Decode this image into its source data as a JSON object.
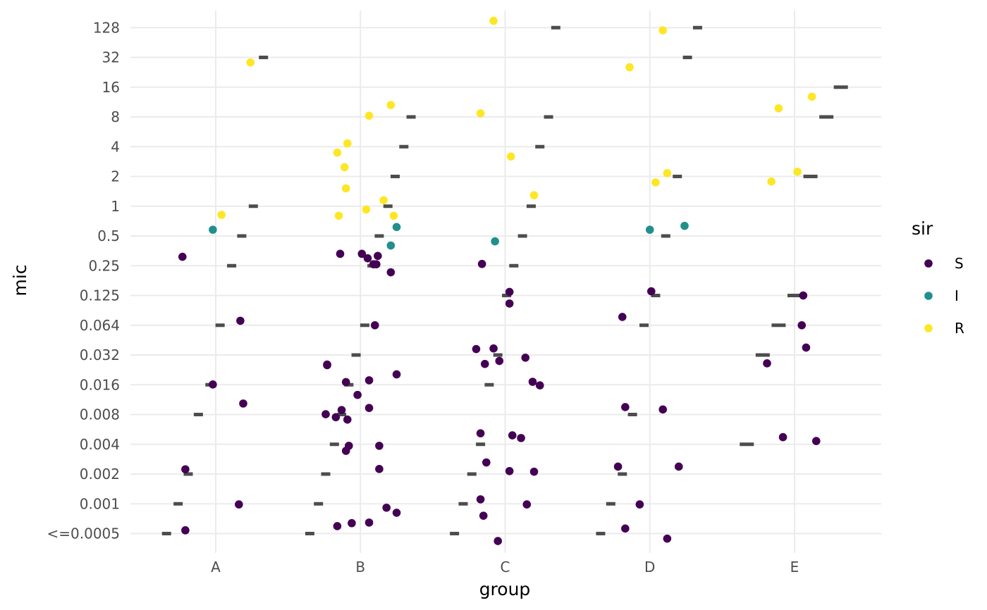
{
  "chart_data": {
    "type": "scatter",
    "xlabel": "group",
    "ylabel": "mic",
    "categories": [
      "A",
      "B",
      "C",
      "D",
      "E"
    ],
    "y_levels": [
      "<=0.0005",
      "0.001",
      "0.002",
      "0.004",
      "0.008",
      "0.016",
      "0.032",
      "0.064",
      "0.125",
      "0.25",
      "0.5",
      "1",
      "2",
      "4",
      "8",
      "16",
      "32",
      "128"
    ],
    "grid": true,
    "legend": {
      "title": "sir",
      "position": "right",
      "entries": [
        {
          "label": "S",
          "color": "#440154"
        },
        {
          "label": "I",
          "color": "#21908C"
        },
        {
          "label": "R",
          "color": "#FDE725"
        }
      ]
    },
    "breakpoint_color": "#4d4d4d",
    "breakpoints": [
      {
        "group": "A",
        "items": [
          {
            "mic": "<=0.0005",
            "offset": -0.34
          },
          {
            "mic": "0.001",
            "offset": -0.26
          },
          {
            "mic": "0.002",
            "offset": -0.19
          },
          {
            "mic": "0.008",
            "offset": -0.12
          },
          {
            "mic": "0.016",
            "offset": -0.04
          },
          {
            "mic": "0.064",
            "offset": 0.03
          },
          {
            "mic": "0.25",
            "offset": 0.11
          },
          {
            "mic": "0.5",
            "offset": 0.18
          },
          {
            "mic": "1",
            "offset": 0.26
          },
          {
            "mic": "32",
            "offset": 0.33
          }
        ]
      },
      {
        "group": "B",
        "items": [
          {
            "mic": "<=0.0005",
            "offset": -0.35
          },
          {
            "mic": "0.001",
            "offset": -0.29
          },
          {
            "mic": "0.002",
            "offset": -0.24
          },
          {
            "mic": "0.004",
            "offset": -0.18
          },
          {
            "mic": "0.008",
            "offset": -0.13
          },
          {
            "mic": "0.016",
            "offset": -0.08
          },
          {
            "mic": "0.032",
            "offset": -0.03
          },
          {
            "mic": "0.064",
            "offset": 0.03
          },
          {
            "mic": "0.25",
            "offset": 0.08
          },
          {
            "mic": "0.5",
            "offset": 0.13
          },
          {
            "mic": "1",
            "offset": 0.19
          },
          {
            "mic": "2",
            "offset": 0.24
          },
          {
            "mic": "4",
            "offset": 0.3
          },
          {
            "mic": "8",
            "offset": 0.35
          }
        ]
      },
      {
        "group": "C",
        "items": [
          {
            "mic": "<=0.0005",
            "offset": -0.35
          },
          {
            "mic": "0.001",
            "offset": -0.29
          },
          {
            "mic": "0.002",
            "offset": -0.23
          },
          {
            "mic": "0.004",
            "offset": -0.17
          },
          {
            "mic": "0.016",
            "offset": -0.11
          },
          {
            "mic": "0.032",
            "offset": -0.05
          },
          {
            "mic": "0.125",
            "offset": 0.01
          },
          {
            "mic": "0.25",
            "offset": 0.06
          },
          {
            "mic": "0.5",
            "offset": 0.12
          },
          {
            "mic": "1",
            "offset": 0.18
          },
          {
            "mic": "4",
            "offset": 0.24
          },
          {
            "mic": "8",
            "offset": 0.3
          },
          {
            "mic": "128",
            "offset": 0.35
          }
        ]
      },
      {
        "group": "D",
        "items": [
          {
            "mic": "<=0.0005",
            "offset": -0.34
          },
          {
            "mic": "0.001",
            "offset": -0.27
          },
          {
            "mic": "0.002",
            "offset": -0.19
          },
          {
            "mic": "0.008",
            "offset": -0.12
          },
          {
            "mic": "0.064",
            "offset": -0.04
          },
          {
            "mic": "0.125",
            "offset": 0.04
          },
          {
            "mic": "0.5",
            "offset": 0.11
          },
          {
            "mic": "2",
            "offset": 0.19
          },
          {
            "mic": "32",
            "offset": 0.26
          },
          {
            "mic": "128",
            "offset": 0.33
          }
        ]
      },
      {
        "group": "E",
        "items": [
          {
            "mic": "0.004",
            "offset": -0.33
          },
          {
            "mic": "0.032",
            "offset": -0.22
          },
          {
            "mic": "0.064",
            "offset": -0.11
          },
          {
            "mic": "0.125",
            "offset": 0.0
          },
          {
            "mic": "2",
            "offset": 0.11
          },
          {
            "mic": "8",
            "offset": 0.22
          },
          {
            "mic": "16",
            "offset": 0.32
          }
        ]
      }
    ],
    "points": [
      {
        "group": "A",
        "mic": "<=0.0005",
        "sir": "S",
        "jx": -0.21,
        "jy": 0.11
      },
      {
        "group": "A",
        "mic": "0.001",
        "sir": "S",
        "jx": 0.16,
        "jy": -0.02
      },
      {
        "group": "A",
        "mic": "0.002",
        "sir": "S",
        "jx": -0.21,
        "jy": 0.16
      },
      {
        "group": "A",
        "mic": "0.008",
        "sir": "S",
        "jx": 0.19,
        "jy": 0.37
      },
      {
        "group": "A",
        "mic": "0.016",
        "sir": "S",
        "jx": -0.02,
        "jy": 0.01
      },
      {
        "group": "A",
        "mic": "0.064",
        "sir": "S",
        "jx": 0.17,
        "jy": 0.15
      },
      {
        "group": "A",
        "mic": "0.25",
        "sir": "S",
        "jx": -0.23,
        "jy": 0.3
      },
      {
        "group": "A",
        "mic": "0.5",
        "sir": "I",
        "jx": -0.02,
        "jy": 0.21
      },
      {
        "group": "A",
        "mic": "1",
        "sir": "R",
        "jx": 0.04,
        "jy": -0.29
      },
      {
        "group": "A",
        "mic": "32",
        "sir": "R",
        "jx": 0.24,
        "jy": -0.17
      },
      {
        "group": "B",
        "mic": "<=0.0005",
        "sir": "S",
        "jx": -0.16,
        "jy": 0.25
      },
      {
        "group": "B",
        "mic": "<=0.0005",
        "sir": "S",
        "jx": -0.06,
        "jy": 0.35
      },
      {
        "group": "B",
        "mic": "<=0.0005",
        "sir": "S",
        "jx": 0.06,
        "jy": 0.37
      },
      {
        "group": "B",
        "mic": "0.001",
        "sir": "S",
        "jx": 0.18,
        "jy": -0.13
      },
      {
        "group": "B",
        "mic": "0.001",
        "sir": "S",
        "jx": 0.25,
        "jy": -0.3
      },
      {
        "group": "B",
        "mic": "0.002",
        "sir": "S",
        "jx": 0.13,
        "jy": 0.17
      },
      {
        "group": "B",
        "mic": "0.004",
        "sir": "S",
        "jx": -0.1,
        "jy": -0.22
      },
      {
        "group": "B",
        "mic": "0.004",
        "sir": "S",
        "jx": -0.08,
        "jy": -0.05
      },
      {
        "group": "B",
        "mic": "0.004",
        "sir": "S",
        "jx": 0.13,
        "jy": -0.05
      },
      {
        "group": "B",
        "mic": "0.008",
        "sir": "S",
        "jx": -0.24,
        "jy": 0.01
      },
      {
        "group": "B",
        "mic": "0.008",
        "sir": "S",
        "jx": -0.17,
        "jy": -0.09
      },
      {
        "group": "B",
        "mic": "0.008",
        "sir": "S",
        "jx": -0.13,
        "jy": 0.15
      },
      {
        "group": "B",
        "mic": "0.008",
        "sir": "S",
        "jx": -0.09,
        "jy": -0.17
      },
      {
        "group": "B",
        "mic": "0.008",
        "sir": "S",
        "jx": 0.06,
        "jy": 0.22
      },
      {
        "group": "B",
        "mic": "0.016",
        "sir": "S",
        "jx": -0.1,
        "jy": 0.09
      },
      {
        "group": "B",
        "mic": "0.016",
        "sir": "S",
        "jx": -0.02,
        "jy": -0.34
      },
      {
        "group": "B",
        "mic": "0.016",
        "sir": "S",
        "jx": 0.06,
        "jy": 0.15
      },
      {
        "group": "B",
        "mic": "0.016",
        "sir": "S",
        "jx": 0.25,
        "jy": 0.35
      },
      {
        "group": "B",
        "mic": "0.032",
        "sir": "S",
        "jx": -0.23,
        "jy": -0.32
      },
      {
        "group": "B",
        "mic": "0.032",
        "sir": "S",
        "jx": -0.23,
        "jy": -0.34
      },
      {
        "group": "B",
        "mic": "0.064",
        "sir": "S",
        "jx": 0.1,
        "jy": 0.0
      },
      {
        "group": "B",
        "mic": "0.25",
        "sir": "S",
        "jx": -0.14,
        "jy": 0.4
      },
      {
        "group": "B",
        "mic": "0.25",
        "sir": "S",
        "jx": 0.01,
        "jy": 0.4
      },
      {
        "group": "B",
        "mic": "0.25",
        "sir": "S",
        "jx": 0.05,
        "jy": 0.25
      },
      {
        "group": "B",
        "mic": "0.25",
        "sir": "S",
        "jx": 0.09,
        "jy": 0.05
      },
      {
        "group": "B",
        "mic": "0.25",
        "sir": "S",
        "jx": 0.11,
        "jy": 0.05
      },
      {
        "group": "B",
        "mic": "0.25",
        "sir": "S",
        "jx": 0.12,
        "jy": 0.33
      },
      {
        "group": "B",
        "mic": "0.25",
        "sir": "S",
        "jx": 0.21,
        "jy": -0.22
      },
      {
        "group": "B",
        "mic": "0.5",
        "sir": "I",
        "jx": 0.21,
        "jy": -0.32
      },
      {
        "group": "B",
        "mic": "0.5",
        "sir": "I",
        "jx": 0.25,
        "jy": 0.3
      },
      {
        "group": "B",
        "mic": "1",
        "sir": "R",
        "jx": -0.15,
        "jy": -0.32
      },
      {
        "group": "B",
        "mic": "1",
        "sir": "R",
        "jx": 0.04,
        "jy": -0.11
      },
      {
        "group": "B",
        "mic": "1",
        "sir": "R",
        "jx": 0.16,
        "jy": 0.2
      },
      {
        "group": "B",
        "mic": "1",
        "sir": "R",
        "jx": 0.23,
        "jy": -0.32
      },
      {
        "group": "B",
        "mic": "2",
        "sir": "R",
        "jx": -0.1,
        "jy": -0.4
      },
      {
        "group": "B",
        "mic": "2",
        "sir": "R",
        "jx": -0.11,
        "jy": 0.31
      },
      {
        "group": "B",
        "mic": "4",
        "sir": "R",
        "jx": -0.16,
        "jy": -0.2
      },
      {
        "group": "B",
        "mic": "4",
        "sir": "R",
        "jx": -0.09,
        "jy": 0.11
      },
      {
        "group": "B",
        "mic": "8",
        "sir": "R",
        "jx": 0.06,
        "jy": 0.04
      },
      {
        "group": "B",
        "mic": "8",
        "sir": "R",
        "jx": 0.21,
        "jy": 0.4
      },
      {
        "group": "C",
        "mic": "<=0.0005",
        "sir": "S",
        "jx": -0.05,
        "jy": -0.25
      },
      {
        "group": "C",
        "mic": "0.001",
        "sir": "S",
        "jx": -0.17,
        "jy": 0.15
      },
      {
        "group": "C",
        "mic": "0.001",
        "sir": "S",
        "jx": -0.15,
        "jy": -0.4
      },
      {
        "group": "C",
        "mic": "0.001",
        "sir": "S",
        "jx": 0.15,
        "jy": -0.02
      },
      {
        "group": "C",
        "mic": "0.002",
        "sir": "S",
        "jx": -0.13,
        "jy": 0.39
      },
      {
        "group": "C",
        "mic": "0.002",
        "sir": "S",
        "jx": 0.03,
        "jy": 0.1
      },
      {
        "group": "C",
        "mic": "0.002",
        "sir": "S",
        "jx": 0.2,
        "jy": 0.08
      },
      {
        "group": "C",
        "mic": "0.008",
        "sir": "S",
        "jx": -0.17,
        "jy": -0.63
      },
      {
        "group": "C",
        "mic": "0.004",
        "sir": "S",
        "jx": 0.05,
        "jy": 0.3
      },
      {
        "group": "C",
        "mic": "0.004",
        "sir": "S",
        "jx": 0.11,
        "jy": 0.21
      },
      {
        "group": "C",
        "mic": "0.016",
        "sir": "S",
        "jx": 0.19,
        "jy": 0.1
      },
      {
        "group": "C",
        "mic": "0.016",
        "sir": "S",
        "jx": 0.24,
        "jy": -0.02
      },
      {
        "group": "C",
        "mic": "0.032",
        "sir": "S",
        "jx": -0.2,
        "jy": 0.2
      },
      {
        "group": "C",
        "mic": "0.032",
        "sir": "S",
        "jx": -0.14,
        "jy": -0.3
      },
      {
        "group": "C",
        "mic": "0.032",
        "sir": "S",
        "jx": -0.08,
        "jy": 0.22
      },
      {
        "group": "C",
        "mic": "0.032",
        "sir": "S",
        "jx": -0.04,
        "jy": -0.2
      },
      {
        "group": "C",
        "mic": "0.032",
        "sir": "S",
        "jx": 0.14,
        "jy": -0.09
      },
      {
        "group": "C",
        "mic": "0.125",
        "sir": "S",
        "jx": 0.03,
        "jy": 0.12
      },
      {
        "group": "C",
        "mic": "0.125",
        "sir": "S",
        "jx": 0.03,
        "jy": -0.27
      },
      {
        "group": "C",
        "mic": "0.25",
        "sir": "S",
        "jx": -0.16,
        "jy": 0.06
      },
      {
        "group": "C",
        "mic": "0.5",
        "sir": "I",
        "jx": -0.07,
        "jy": -0.18
      },
      {
        "group": "C",
        "mic": "1",
        "sir": "R",
        "jx": 0.2,
        "jy": 0.37
      },
      {
        "group": "C",
        "mic": "4",
        "sir": "R",
        "jx": 0.04,
        "jy": -0.33
      },
      {
        "group": "C",
        "mic": "8",
        "sir": "R",
        "jx": -0.17,
        "jy": 0.12
      },
      {
        "group": "C",
        "mic": "128",
        "sir": "R",
        "jx": -0.08,
        "jy": 0.23
      },
      {
        "group": "D",
        "mic": "<=0.0005",
        "sir": "S",
        "jx": -0.17,
        "jy": 0.17
      },
      {
        "group": "D",
        "mic": "<=0.0005",
        "sir": "S",
        "jx": 0.12,
        "jy": -0.17
      },
      {
        "group": "D",
        "mic": "0.001",
        "sir": "S",
        "jx": -0.07,
        "jy": -0.02
      },
      {
        "group": "D",
        "mic": "0.002",
        "sir": "S",
        "jx": -0.22,
        "jy": 0.25
      },
      {
        "group": "D",
        "mic": "0.002",
        "sir": "S",
        "jx": 0.2,
        "jy": 0.25
      },
      {
        "group": "D",
        "mic": "0.008",
        "sir": "S",
        "jx": -0.17,
        "jy": 0.25
      },
      {
        "group": "D",
        "mic": "0.008",
        "sir": "S",
        "jx": 0.09,
        "jy": 0.17
      },
      {
        "group": "D",
        "mic": "0.064",
        "sir": "S",
        "jx": -0.19,
        "jy": 0.28
      },
      {
        "group": "D",
        "mic": "0.125",
        "sir": "S",
        "jx": 0.01,
        "jy": 0.14
      },
      {
        "group": "D",
        "mic": "0.5",
        "sir": "I",
        "jx": 0.0,
        "jy": 0.21
      },
      {
        "group": "D",
        "mic": "0.5",
        "sir": "I",
        "jx": 0.24,
        "jy": 0.34
      },
      {
        "group": "D",
        "mic": "2",
        "sir": "R",
        "jx": 0.04,
        "jy": -0.2
      },
      {
        "group": "D",
        "mic": "2",
        "sir": "R",
        "jx": 0.12,
        "jy": 0.11
      },
      {
        "group": "D",
        "mic": "32",
        "sir": "R",
        "jx": -0.14,
        "jy": -0.33
      },
      {
        "group": "D",
        "mic": "128",
        "sir": "R",
        "jx": 0.09,
        "jy": -0.09
      },
      {
        "group": "E",
        "mic": "0.004",
        "sir": "S",
        "jx": -0.08,
        "jy": 0.24
      },
      {
        "group": "E",
        "mic": "0.004",
        "sir": "S",
        "jx": 0.15,
        "jy": 0.11
      },
      {
        "group": "E",
        "mic": "0.032",
        "sir": "S",
        "jx": -0.19,
        "jy": -0.28
      },
      {
        "group": "E",
        "mic": "0.032",
        "sir": "S",
        "jx": 0.08,
        "jy": 0.25
      },
      {
        "group": "E",
        "mic": "0.064",
        "sir": "S",
        "jx": 0.05,
        "jy": 0.0
      },
      {
        "group": "E",
        "mic": "0.125",
        "sir": "S",
        "jx": 0.06,
        "jy": 0.0
      },
      {
        "group": "E",
        "mic": "2",
        "sir": "R",
        "jx": -0.16,
        "jy": -0.17
      },
      {
        "group": "E",
        "mic": "2",
        "sir": "R",
        "jx": 0.02,
        "jy": 0.16
      },
      {
        "group": "E",
        "mic": "8",
        "sir": "R",
        "jx": -0.11,
        "jy": 0.29
      },
      {
        "group": "E",
        "mic": "16",
        "sir": "R",
        "jx": 0.12,
        "jy": -0.32
      }
    ]
  }
}
